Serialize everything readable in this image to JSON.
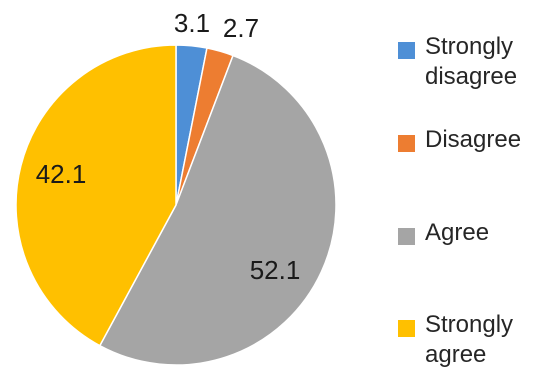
{
  "chart_data": {
    "type": "pie",
    "title": "",
    "categories": [
      "Strongly disagree",
      "Disagree",
      "Agree",
      "Strongly agree"
    ],
    "values": [
      3.1,
      2.7,
      52.1,
      42.1
    ],
    "data_labels": [
      "3.1",
      "2.7",
      "52.1",
      "42.1"
    ],
    "colors": [
      "#4e8fd6",
      "#ed7d31",
      "#a5a5a5",
      "#ffc000"
    ],
    "start_angle_deg": 0,
    "direction": "clockwise",
    "legend": {
      "position": "right",
      "entries": [
        {
          "label": "Strongly disagree",
          "color": "#4e8fd6"
        },
        {
          "label": "Disagree",
          "color": "#ed7d31"
        },
        {
          "label": "Agree",
          "color": "#a5a5a5"
        },
        {
          "label": "Strongly agree",
          "color": "#ffc000"
        }
      ]
    }
  }
}
